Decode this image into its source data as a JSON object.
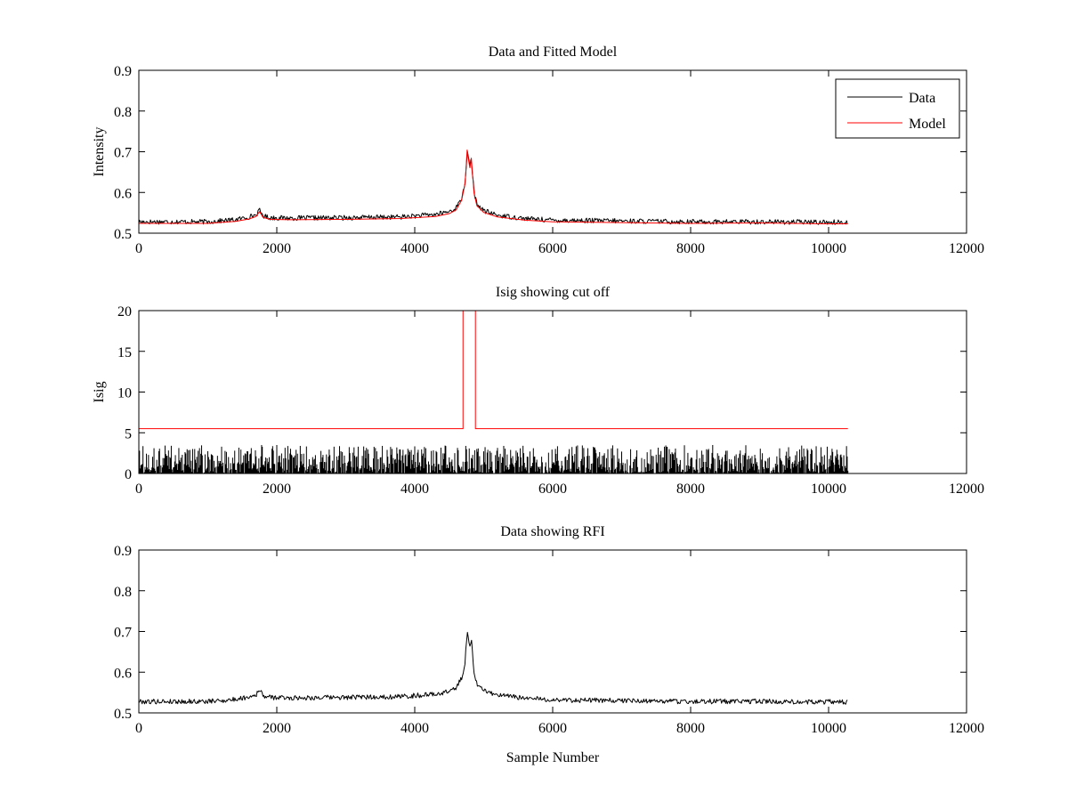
{
  "figure": {
    "background": "#ffffff"
  },
  "chart_data": [
    {
      "type": "line",
      "title": "Data and Fitted Model",
      "xlabel": "",
      "ylabel": "Intensity",
      "xlim": [
        0,
        12000
      ],
      "ylim": [
        0.5,
        0.9
      ],
      "xticks": [
        0,
        2000,
        4000,
        6000,
        8000,
        10000,
        12000
      ],
      "yticks": [
        0.5,
        0.6,
        0.7,
        0.8,
        0.9
      ],
      "ytick_labels": [
        "0.5",
        "0.6",
        "0.7",
        "0.8",
        "0.9"
      ],
      "legend": {
        "position": "top-right",
        "entries": [
          {
            "label": "Data",
            "color": "#000000"
          },
          {
            "label": "Model",
            "color": "#ff0000"
          }
        ]
      },
      "series": [
        {
          "name": "Data",
          "color": "#000000",
          "kind": "noisy",
          "noise_amplitude": 0.006,
          "x": [
            0,
            1000,
            1400,
            1600,
            1700,
            1750,
            1800,
            1900,
            2200,
            3000,
            3800,
            4300,
            4500,
            4600,
            4680,
            4730,
            4760,
            4780,
            4800,
            4820,
            4840,
            4860,
            4900,
            5000,
            5200,
            5600,
            6000,
            7000,
            8000,
            9000,
            10000,
            10280
          ],
          "y": [
            0.528,
            0.528,
            0.533,
            0.54,
            0.545,
            0.556,
            0.543,
            0.538,
            0.537,
            0.538,
            0.54,
            0.546,
            0.553,
            0.562,
            0.585,
            0.625,
            0.7,
            0.68,
            0.665,
            0.683,
            0.64,
            0.6,
            0.572,
            0.555,
            0.544,
            0.536,
            0.532,
            0.53,
            0.528,
            0.528,
            0.527,
            0.527
          ]
        },
        {
          "name": "Model",
          "color": "#ff0000",
          "kind": "smooth",
          "noise_amplitude": 0,
          "x": [
            0,
            1000,
            1400,
            1600,
            1700,
            1750,
            1800,
            1900,
            2200,
            3000,
            3800,
            4300,
            4500,
            4600,
            4680,
            4730,
            4760,
            4780,
            4800,
            4820,
            4840,
            4860,
            4900,
            5000,
            5200,
            5600,
            6000,
            7000,
            8000,
            9000,
            10000,
            10280
          ],
          "y": [
            0.524,
            0.524,
            0.529,
            0.535,
            0.541,
            0.553,
            0.539,
            0.534,
            0.533,
            0.534,
            0.536,
            0.541,
            0.548,
            0.557,
            0.581,
            0.622,
            0.705,
            0.68,
            0.66,
            0.685,
            0.64,
            0.598,
            0.568,
            0.551,
            0.54,
            0.532,
            0.528,
            0.526,
            0.524,
            0.525,
            0.523,
            0.523
          ]
        }
      ]
    },
    {
      "type": "line",
      "title": "Isig showing cut off",
      "xlabel": "",
      "ylabel": "Isig",
      "xlim": [
        0,
        12000
      ],
      "ylim": [
        0,
        20
      ],
      "xticks": [
        0,
        2000,
        4000,
        6000,
        8000,
        10000,
        12000
      ],
      "yticks": [
        0,
        5,
        10,
        15,
        20
      ],
      "ytick_labels": [
        "0",
        "5",
        "10",
        "15",
        "20"
      ],
      "series": [
        {
          "color": "#000000",
          "kind": "spikes",
          "noise_amplitude": 3.5,
          "x": [
            0,
            10280
          ],
          "y": [
            0,
            0
          ]
        },
        {
          "color": "#ff0000",
          "kind": "step",
          "noise_amplitude": 0,
          "x": [
            0,
            4700,
            4700,
            4880,
            4880,
            10280
          ],
          "y": [
            5.5,
            5.5,
            20,
            20,
            5.5,
            5.5
          ]
        }
      ]
    },
    {
      "type": "line",
      "title": "Data showing RFI",
      "xlabel": "Sample Number",
      "ylabel": "",
      "xlim": [
        0,
        12000
      ],
      "ylim": [
        0.5,
        0.9
      ],
      "xticks": [
        0,
        2000,
        4000,
        6000,
        8000,
        10000,
        12000
      ],
      "yticks": [
        0.5,
        0.6,
        0.7,
        0.8,
        0.9
      ],
      "ytick_labels": [
        "0.5",
        "0.6",
        "0.7",
        "0.8",
        "0.9"
      ],
      "series": [
        {
          "color": "#000000",
          "kind": "noisy",
          "noise_amplitude": 0.006,
          "x": [
            0,
            1000,
            1400,
            1600,
            1700,
            1750,
            1800,
            1900,
            2200,
            3000,
            3800,
            4300,
            4500,
            4600,
            4680,
            4730,
            4760,
            4780,
            4800,
            4820,
            4840,
            4860,
            4900,
            5000,
            5200,
            5600,
            6000,
            7000,
            8000,
            9000,
            10000,
            10280
          ],
          "y": [
            0.528,
            0.528,
            0.533,
            0.54,
            0.545,
            0.556,
            0.543,
            0.538,
            0.537,
            0.538,
            0.54,
            0.546,
            0.553,
            0.562,
            0.585,
            0.625,
            0.7,
            0.68,
            0.665,
            0.683,
            0.64,
            0.6,
            0.572,
            0.555,
            0.544,
            0.536,
            0.532,
            0.53,
            0.528,
            0.528,
            0.527,
            0.527
          ]
        }
      ]
    }
  ]
}
